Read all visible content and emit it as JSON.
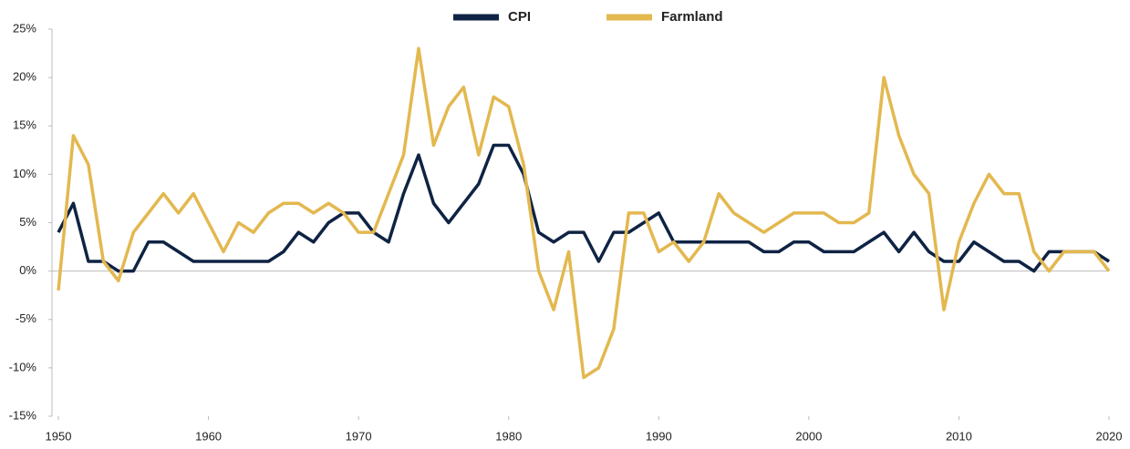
{
  "chart_data": {
    "type": "line",
    "x": [
      1950,
      1951,
      1952,
      1953,
      1954,
      1955,
      1956,
      1957,
      1958,
      1959,
      1960,
      1961,
      1962,
      1963,
      1964,
      1965,
      1966,
      1967,
      1968,
      1969,
      1970,
      1971,
      1972,
      1973,
      1974,
      1975,
      1976,
      1977,
      1978,
      1979,
      1980,
      1981,
      1982,
      1983,
      1984,
      1985,
      1986,
      1987,
      1988,
      1989,
      1990,
      1991,
      1992,
      1993,
      1994,
      1995,
      1996,
      1997,
      1998,
      1999,
      2000,
      2001,
      2002,
      2003,
      2004,
      2005,
      2006,
      2007,
      2008,
      2009,
      2010,
      2011,
      2012,
      2013,
      2014,
      2015,
      2016,
      2017,
      2018,
      2019,
      2020
    ],
    "series": [
      {
        "name": "CPI",
        "color": "#0f2344",
        "values": [
          4,
          7,
          1,
          1,
          0,
          0,
          3,
          3,
          2,
          1,
          1,
          1,
          1,
          1,
          1,
          2,
          4,
          3,
          5,
          6,
          6,
          4,
          3,
          8,
          12,
          7,
          5,
          7,
          9,
          13,
          13,
          10,
          4,
          3,
          4,
          4,
          1,
          4,
          4,
          5,
          6,
          3,
          3,
          3,
          3,
          3,
          3,
          2,
          2,
          3,
          3,
          2,
          2,
          2,
          3,
          4,
          2,
          4,
          2,
          1,
          1,
          3,
          2,
          1,
          1,
          0,
          2,
          2,
          2,
          2,
          1
        ]
      },
      {
        "name": "Farmland",
        "color": "#e3b84f",
        "values": [
          -2,
          14,
          11,
          1,
          -1,
          4,
          6,
          8,
          6,
          8,
          5,
          2,
          5,
          4,
          6,
          7,
          7,
          6,
          7,
          6,
          4,
          4,
          8,
          12,
          23,
          13,
          17,
          19,
          12,
          18,
          17,
          11,
          0,
          -4,
          2,
          -11,
          -10,
          -6,
          6,
          6,
          2,
          3,
          1,
          3,
          8,
          6,
          5,
          4,
          5,
          6,
          6,
          6,
          5,
          5,
          6,
          20,
          14,
          10,
          8,
          -4,
          3,
          7,
          10,
          8,
          8,
          2,
          0,
          2,
          2,
          2,
          0
        ]
      }
    ],
    "xlim": [
      1950,
      2020
    ],
    "xticks": [
      1950,
      1960,
      1970,
      1980,
      1990,
      2000,
      2010,
      2020
    ],
    "ylim": [
      -15,
      25
    ],
    "yticks": [
      {
        "value": -15,
        "label": "-15%"
      },
      {
        "value": -10,
        "label": "-10%"
      },
      {
        "value": -5,
        "label": "-5%"
      },
      {
        "value": 0,
        "label": "0%"
      },
      {
        "value": 5,
        "label": "5%"
      },
      {
        "value": 10,
        "label": "10%"
      },
      {
        "value": 15,
        "label": "15%"
      },
      {
        "value": 20,
        "label": "20%"
      },
      {
        "value": 25,
        "label": "25%"
      }
    ],
    "legend": "top"
  }
}
